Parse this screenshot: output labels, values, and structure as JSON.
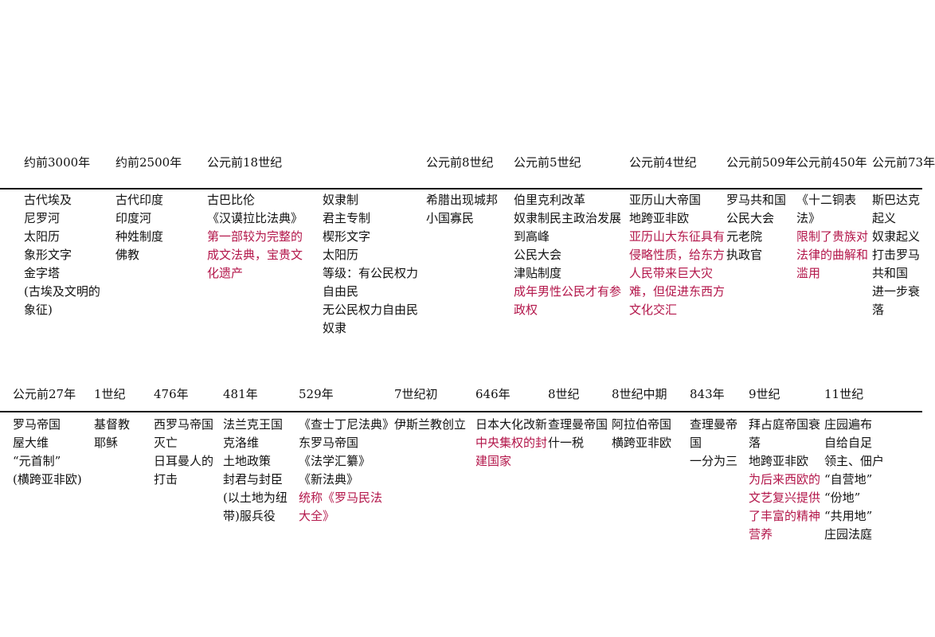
{
  "rows": [
    {
      "entries": [
        {
          "date": "约前3000年",
          "text": [
            "古代埃及",
            "尼罗河",
            "太阳历",
            "象形文字",
            "金字塔",
            "(古埃及文明的象征)"
          ],
          "notes": []
        },
        {
          "date": "约前2500年",
          "text": [
            "古代印度",
            "印度河",
            "种姓制度",
            "佛教"
          ],
          "notes": []
        },
        {
          "date": "公元前18世纪",
          "text": [
            "古巴比伦",
            "《汉谟拉比法典》"
          ],
          "notes": [
            "第一部较为完整的成文法典，宝贵文化遗产"
          ]
        },
        {
          "text": [
            "奴隶制",
            "君主专制",
            "楔形文字",
            "太阳历",
            "等级：有公民权力自由民",
            "无公民权力自由民",
            "奴隶"
          ],
          "notes": []
        },
        {
          "date": "公元前8世纪",
          "text": [
            "希腊出现城邦",
            "小国寡民"
          ],
          "notes": []
        },
        {
          "date": "公元前5世纪",
          "text": [
            "伯里克利改革",
            "奴隶制民主政治发展到高峰",
            "公民大会",
            "津贴制度"
          ],
          "notes": [
            "成年男性公民才有参政权"
          ]
        },
        {
          "date": "公元前4世纪",
          "text": [
            "亚历山大帝国",
            "地跨亚非欧"
          ],
          "notes": [
            "亚历山大东征具有侵略性质，给东方人民带来巨大灾难，但促进东西方文化交汇"
          ]
        },
        {
          "date": "公元前509年",
          "text": [
            "罗马共和国",
            "公民大会",
            "元老院",
            "执政官"
          ],
          "notes": []
        },
        {
          "date": "公元前450年",
          "text": [
            "《十二铜表法》"
          ],
          "notes": [
            "限制了贵族对法律的曲解和滥用"
          ]
        },
        {
          "date": "公元前73年",
          "text": [
            "斯巴达克起义",
            "奴隶起义打击罗马共和国",
            "进一步衰落"
          ],
          "notes": []
        }
      ]
    },
    {
      "entries": [
        {
          "date": "公元前27年",
          "text": [
            "罗马帝国",
            "屋大维",
            "“元首制”",
            "(横跨亚非欧)"
          ],
          "notes": []
        },
        {
          "date": "1世纪",
          "text": [
            "基督教",
            "耶稣"
          ],
          "notes": []
        },
        {
          "date": "476年",
          "text": [
            "西罗马帝国灭亡",
            "日耳曼人的打击"
          ],
          "notes": []
        },
        {
          "date": "481年",
          "text": [
            "法兰克王国",
            "克洛维",
            "土地政策",
            "封君与封臣",
            "(以土地为纽带)服兵役"
          ],
          "notes": []
        },
        {
          "date": "529年",
          "text": [
            "《查士丁尼法典》",
            "东罗马帝国",
            "《法学汇纂》",
            "《新法典》"
          ],
          "notes": [
            "统称《罗马民法大全》"
          ]
        },
        {
          "date": "7世纪初",
          "text": [
            "伊斯兰教创立"
          ],
          "notes": []
        },
        {
          "date": "646年",
          "text": [
            "日本大化改新"
          ],
          "notes": [
            "中央集权的封建国家"
          ]
        },
        {
          "date": "8世纪",
          "text": [
            "查理曼帝国",
            "什一税"
          ],
          "notes": []
        },
        {
          "date": "8世纪中期",
          "text": [
            "阿拉伯帝国",
            "横跨亚非欧"
          ],
          "notes": []
        },
        {
          "date": "843年",
          "text": [
            "查理曼帝国",
            "一分为三"
          ],
          "notes": []
        },
        {
          "date": "9世纪",
          "text": [
            "拜占庭帝国衰落",
            "地跨亚非欧"
          ],
          "notes": [
            "为后来西欧的文艺复兴提供了丰富的精神营养"
          ]
        },
        {
          "date": "11世纪",
          "text": [
            "庄园遍布",
            "自给自足",
            "领主、佃户",
            "“自营地”",
            "“份地”",
            "“共用地”",
            "庄园法庭"
          ],
          "notes": []
        }
      ]
    }
  ]
}
